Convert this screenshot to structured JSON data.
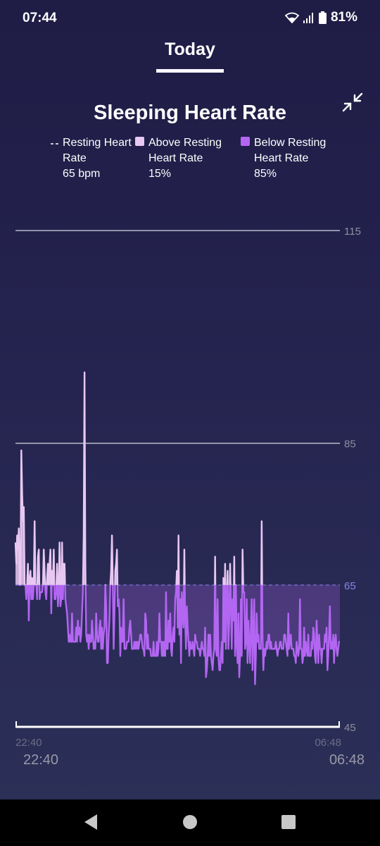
{
  "status_bar": {
    "time": "07:44",
    "battery": "81%",
    "icons": [
      "wifi-icon",
      "signal-icon",
      "battery-icon"
    ]
  },
  "tabs": {
    "today": "Today"
  },
  "title": "Sleeping Heart Rate",
  "legend": [
    {
      "label": "Resting Heart Rate",
      "value": "65 bpm",
      "color": "#ffffff"
    },
    {
      "label": "Above Resting Heart Rate",
      "value": "15%",
      "color": "#e8c8f2"
    },
    {
      "label": "Below Resting Heart Rate",
      "value": "85%",
      "color": "#b366f2"
    }
  ],
  "x_axis": {
    "start_small": "22:40",
    "end_small": "06:48",
    "start": "22:40",
    "end": "06:48"
  },
  "chart_data": {
    "type": "area",
    "title": "Sleeping Heart Rate",
    "ylim": [
      45,
      115
    ],
    "y_ticks": [
      115,
      85,
      65,
      45
    ],
    "reference_line": {
      "label": "Resting Heart Rate",
      "value": 65
    },
    "x_range": [
      "22:40",
      "06:48"
    ],
    "colors": {
      "above": "#e8c8f2",
      "below": "#b366f2",
      "reference": "#7b72d8",
      "grid": "#d8d8e0"
    },
    "series": [
      {
        "values": [
          71,
          68,
          72,
          70,
          73,
          65,
          65,
          84,
          78,
          74,
          76,
          65,
          65,
          63,
          65,
          68,
          60,
          66,
          67,
          63,
          66,
          63,
          65,
          74,
          65,
          65,
          63,
          69,
          70,
          63,
          64,
          64,
          64,
          65,
          70,
          67,
          64,
          63,
          66,
          68,
          65,
          68,
          70,
          61,
          67,
          65,
          70,
          63,
          63,
          64,
          68,
          62,
          64,
          71,
          62,
          63,
          71,
          63,
          68,
          68,
          63,
          62,
          61,
          59,
          57,
          58,
          57,
          57,
          61,
          57,
          57,
          57,
          57,
          59,
          57,
          60,
          58,
          59,
          57,
          58,
          61,
          64,
          72,
          95,
          68,
          58,
          57,
          58,
          56,
          58,
          57,
          57,
          60,
          58,
          56,
          57,
          56,
          61,
          58,
          57,
          57,
          59,
          60,
          56,
          59,
          56,
          58,
          59,
          65,
          62,
          54,
          54,
          58,
          60,
          65,
          67,
          72,
          65,
          56,
          61,
          67,
          68,
          70,
          62,
          63,
          61,
          55,
          59,
          57,
          57,
          63,
          56,
          56,
          56,
          57,
          57,
          57,
          59,
          60,
          58,
          56,
          56,
          56,
          57,
          56,
          57,
          56,
          57,
          56,
          57,
          58,
          58,
          57,
          56,
          56,
          55,
          61,
          60,
          56,
          58,
          56,
          56,
          56,
          55,
          55,
          55,
          57,
          55,
          55,
          55,
          57,
          55,
          56,
          61,
          57,
          57,
          55,
          57,
          55,
          57,
          55,
          64,
          56,
          56,
          60,
          57,
          61,
          56,
          55,
          58,
          59,
          57,
          63,
          64,
          67,
          59,
          72,
          58,
          63,
          54,
          64,
          61,
          59,
          70,
          60,
          56,
          62,
          59,
          57,
          55,
          57,
          56,
          56,
          57,
          56,
          55,
          58,
          57,
          57,
          56,
          56,
          56,
          55,
          56,
          57,
          56,
          56,
          55,
          59,
          52,
          53,
          55,
          58,
          55,
          58,
          55,
          54,
          53,
          55,
          56,
          69,
          56,
          55,
          63,
          55,
          53,
          53,
          55,
          57,
          54,
          66,
          57,
          68,
          56,
          63,
          67,
          56,
          60,
          68,
          62,
          56,
          63,
          60,
          69,
          55,
          65,
          57,
          54,
          61,
          52,
          55,
          63,
          55,
          70,
          64,
          64,
          56,
          57,
          63,
          54,
          60,
          57,
          54,
          59,
          63,
          53,
          58,
          63,
          51,
          55,
          61,
          57,
          58,
          56,
          56,
          56,
          74,
          58,
          53,
          56,
          55,
          56,
          57,
          56,
          58,
          58,
          56,
          57,
          56,
          56,
          56,
          56,
          56,
          57,
          56,
          55,
          56,
          56,
          57,
          57,
          56,
          56,
          56,
          58,
          58,
          57,
          56,
          55,
          61,
          56,
          57,
          58,
          56,
          56,
          56,
          55,
          55,
          54,
          57,
          56,
          55,
          56,
          63,
          56,
          56,
          54,
          55,
          59,
          55,
          57,
          56,
          55,
          58,
          55,
          55,
          55,
          57,
          56,
          59,
          58,
          55,
          54,
          60,
          57,
          54,
          58,
          56,
          56,
          54,
          56,
          56,
          56,
          58,
          57,
          59,
          53,
          55,
          58,
          62,
          56,
          57,
          56,
          58,
          54,
          57,
          58,
          56,
          55,
          56,
          57,
          57
        ]
      }
    ]
  }
}
